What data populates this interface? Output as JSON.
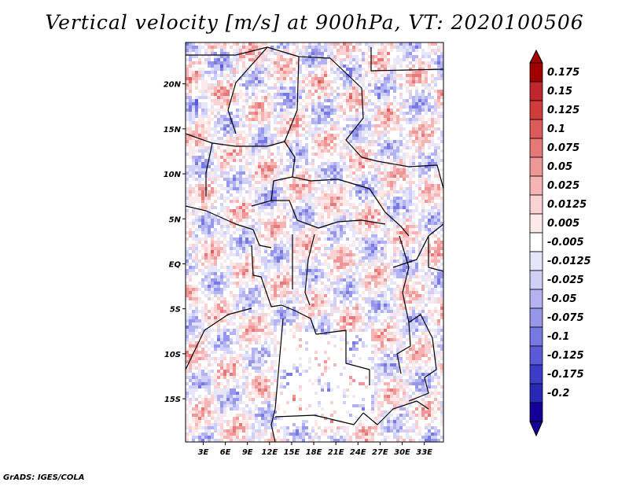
{
  "chart_data": {
    "type": "heatmap",
    "title": "Vertical velocity [m/s] at 900hPa, VT: 2020100506",
    "xlabel": "",
    "ylabel": "",
    "x_ticks": [
      "3E",
      "6E",
      "9E",
      "12E",
      "15E",
      "18E",
      "21E",
      "24E",
      "27E",
      "30E",
      "33E"
    ],
    "x_tick_values": [
      3,
      6,
      9,
      12,
      15,
      18,
      21,
      24,
      27,
      30,
      33
    ],
    "y_ticks": [
      "20N",
      "15N",
      "10N",
      "5N",
      "EQ",
      "5S",
      "10S",
      "15S"
    ],
    "y_tick_values": [
      20,
      15,
      10,
      5,
      0,
      -5,
      -10,
      -15
    ],
    "xlim": [
      0.6,
      35.6
    ],
    "ylim": [
      -19.8,
      24.6
    ],
    "colorbar": {
      "labels": [
        "0.175",
        "0.15",
        "0.125",
        "0.1",
        "0.075",
        "0.05",
        "0.025",
        "0.0125",
        "0.005",
        "-0.005",
        "-0.0125",
        "-0.025",
        "-0.05",
        "-0.075",
        "-0.1",
        "-0.125",
        "-0.175",
        "-0.2"
      ],
      "colors": [
        "#a00000",
        "#c0272d",
        "#d03c3c",
        "#dc5a5a",
        "#e67878",
        "#ef9696",
        "#f6b4b4",
        "#fad2d2",
        "#fde9e9",
        "#ffffff",
        "#e6e6fb",
        "#cfcff7",
        "#b3b3f1",
        "#9696eb",
        "#7878e2",
        "#5a5ad8",
        "#3c3cc8",
        "#2828b4",
        "#140096"
      ],
      "extend": "both"
    },
    "field_description": "mixed red/blue noise",
    "footer": "GrADS: IGES/COLA"
  }
}
